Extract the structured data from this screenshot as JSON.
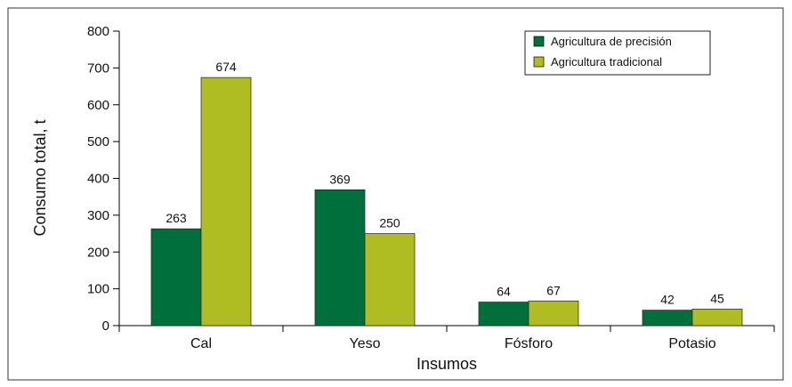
{
  "chart_data": {
    "type": "bar",
    "categories": [
      "Cal",
      "Yeso",
      "Fósforo",
      "Potasio"
    ],
    "series": [
      {
        "name": "Agricultura de precisión",
        "values": [
          263,
          369,
          64,
          42
        ],
        "color": "#006f3c"
      },
      {
        "name": "Agricultura tradicional",
        "values": [
          674,
          250,
          67,
          45
        ],
        "color": "#afbd22"
      }
    ],
    "title": "",
    "xlabel": "Insumos",
    "ylabel": "Consumo total, t",
    "ylim": [
      0,
      800
    ],
    "yticks": [
      0,
      100,
      200,
      300,
      400,
      500,
      600,
      700,
      800
    ],
    "ytick_labels": [
      "0",
      "100",
      "200",
      "300",
      "400",
      "500",
      "600",
      "700",
      "800"
    ],
    "grid": false,
    "legend_position": "top-right",
    "border_color": "#333333"
  }
}
